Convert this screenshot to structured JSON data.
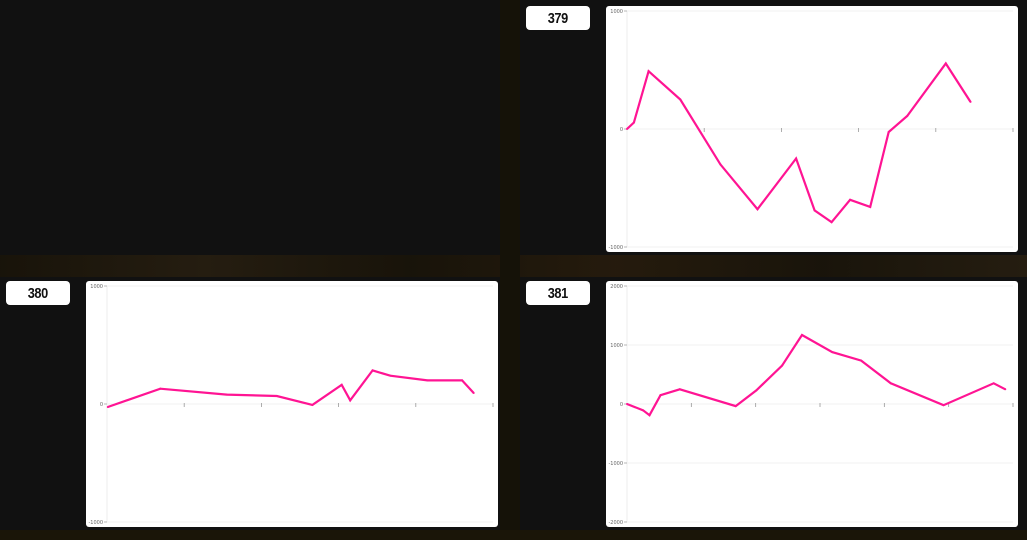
{
  "colors": {
    "background": "#111111",
    "line": "#ff1493",
    "panel": "#ffffff"
  },
  "chart_data": [
    {
      "type": "line",
      "label": "379",
      "xlim": [
        0,
        5
      ],
      "ylim": [
        -1000,
        1000
      ],
      "yticks": [
        -1000,
        0,
        1000
      ],
      "ytick_labels": [
        "-1000",
        "0",
        "1000"
      ],
      "xticks": [
        1,
        2,
        3,
        4,
        5
      ],
      "grid": true,
      "x": [
        0,
        0.09,
        0.28,
        0.69,
        1.21,
        1.69,
        2.19,
        2.43,
        2.65,
        2.89,
        3.15,
        3.39,
        3.63,
        4.13,
        4.45
      ],
      "values": [
        0,
        55,
        490,
        250,
        -300,
        -680,
        -250,
        -690,
        -790,
        -600,
        -660,
        -25,
        110,
        555,
        230
      ]
    },
    {
      "type": "line",
      "label": "380",
      "xlim": [
        0,
        5
      ],
      "ylim": [
        -1000,
        1000
      ],
      "yticks": [
        -1000,
        0,
        1000
      ],
      "ytick_labels": [
        "-1000",
        "0",
        "1000"
      ],
      "xticks": [
        1,
        2,
        3,
        4,
        5
      ],
      "grid": true,
      "x": [
        0.01,
        0.69,
        1.55,
        2.2,
        2.66,
        3.04,
        3.15,
        3.44,
        3.67,
        4.15,
        4.6,
        4.75
      ],
      "values": [
        -25,
        130,
        80,
        68,
        -8,
        163,
        31,
        285,
        240,
        200,
        200,
        93
      ]
    },
    {
      "type": "line",
      "label": "381",
      "xlim": [
        0,
        6
      ],
      "ylim": [
        -2000,
        2000
      ],
      "yticks": [
        -2000,
        -1000,
        0,
        1000,
        2000
      ],
      "ytick_labels": [
        "-2000",
        "-1000",
        "0",
        "1000",
        "2000"
      ],
      "xticks": [
        1,
        2,
        3,
        4,
        5,
        6
      ],
      "grid": true,
      "x": [
        0,
        0.25,
        0.35,
        0.52,
        0.82,
        1.69,
        2.01,
        2.41,
        2.72,
        3.19,
        3.64,
        4.1,
        4.92,
        5.7,
        5.88
      ],
      "values": [
        0,
        -107,
        -190,
        150,
        250,
        -35,
        230,
        650,
        1170,
        880,
        735,
        350,
        -20,
        350,
        250
      ]
    }
  ]
}
